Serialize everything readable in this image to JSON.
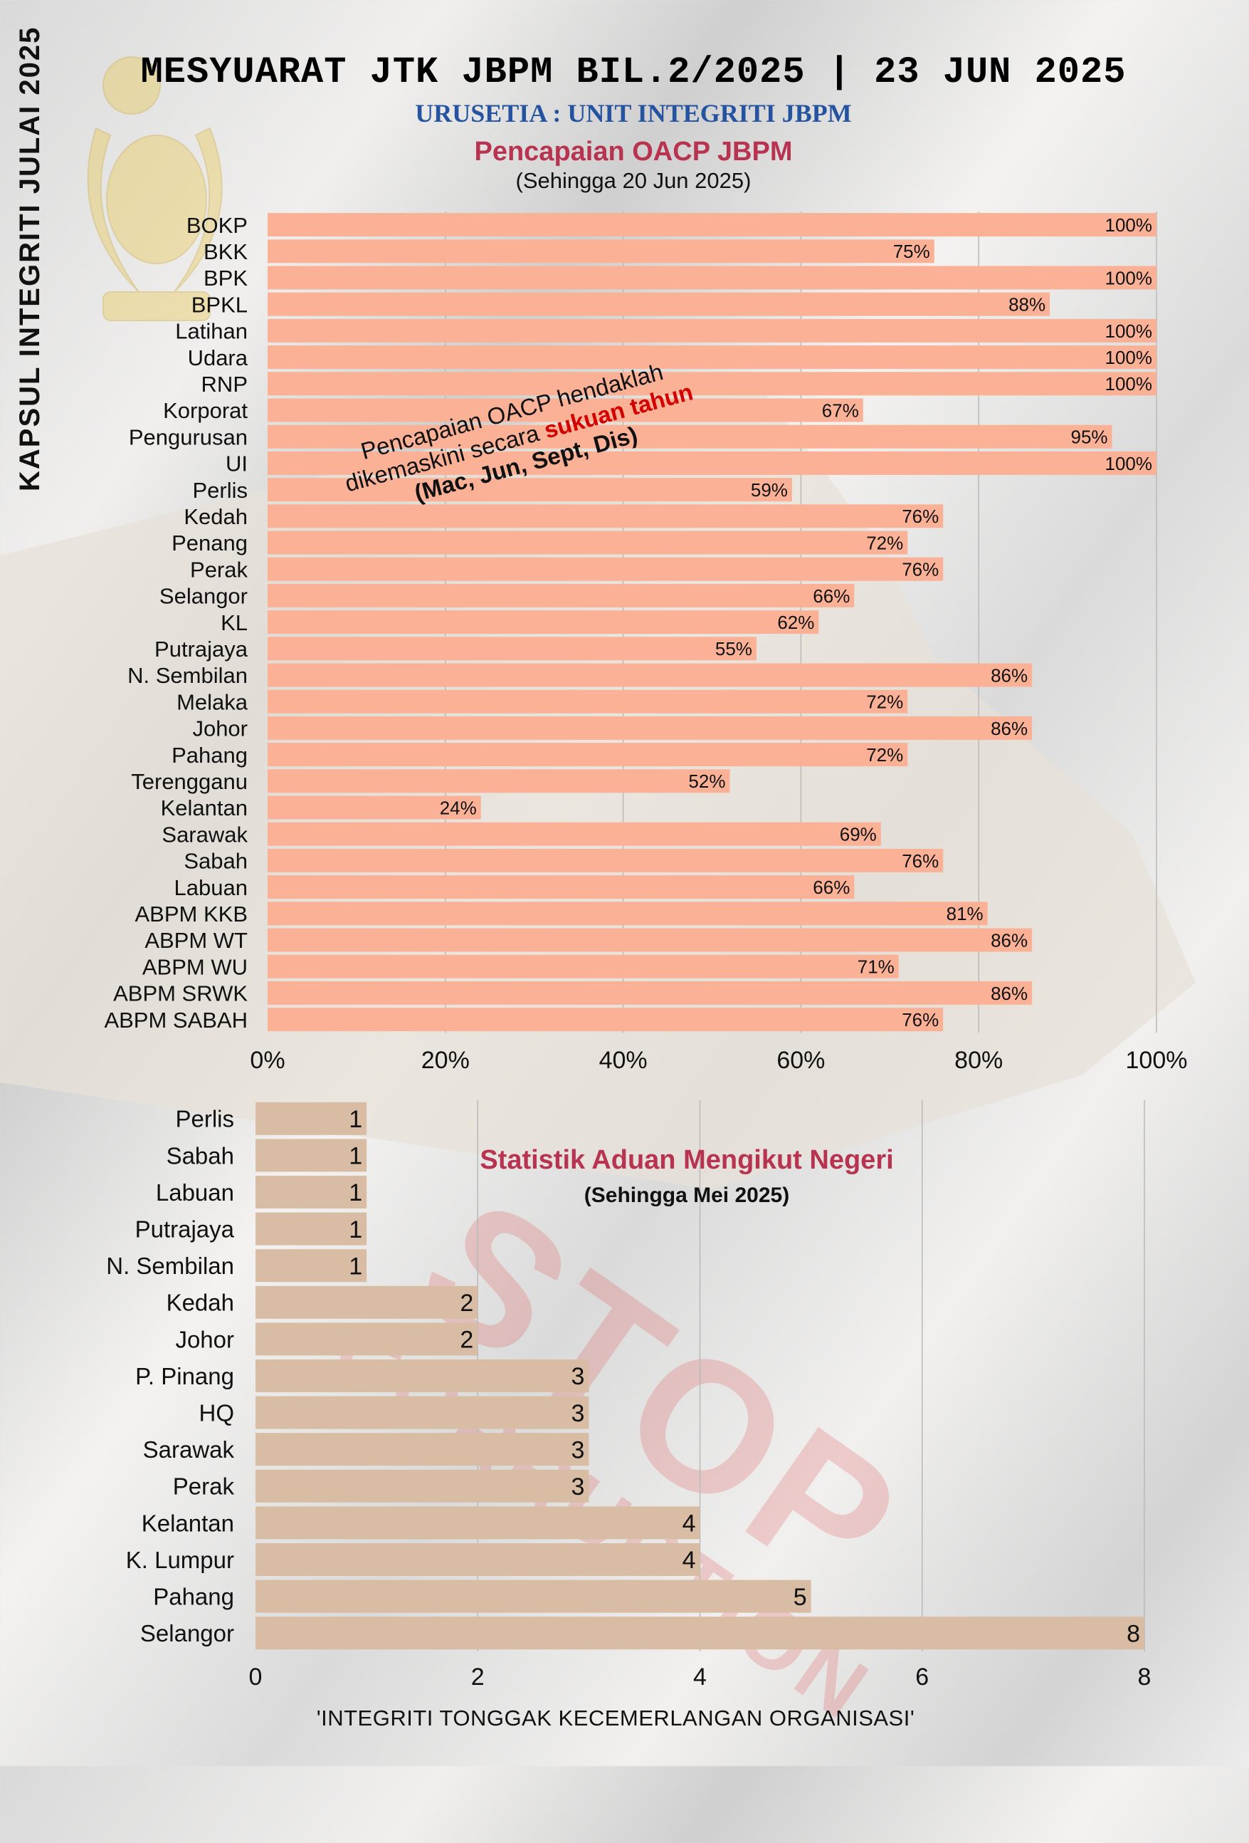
{
  "side_title": "KAPSUL INTEGRITI JULAI 2025",
  "header": {
    "title": "MESYUARAT JTK JBPM BIL.2/2025 | 23 JUN 2025",
    "subtitle": "URUSETIA : UNIT INTEGRITI JBPM"
  },
  "note": {
    "line1": "Pencapaian OACP  hendaklah",
    "line2_pre": "dikemaskini secara ",
    "line2_highlight": "sukuan tahun",
    "line3": "(Mac, Jun, Sept, Dis)"
  },
  "watermark": {
    "line1": "STOP",
    "line2": "CORRUPTION"
  },
  "footer": "'INTEGRITI TONGGAK KECEMERLANGAN ORGANISASI'",
  "colors": {
    "bar1": "#fbb196",
    "bar2": "#d8bca3",
    "title_red": "#b8334f",
    "subtitle_blue": "#2553a0"
  },
  "chart_data": [
    {
      "type": "bar",
      "orientation": "horizontal",
      "title": "Pencapaian OACP JBPM",
      "subtitle": "(Sehingga 20 Jun 2025)",
      "categories": [
        "BOKP",
        "BKK",
        "BPK",
        "BPKL",
        "Latihan",
        "Udara",
        "RNP",
        "Korporat",
        "Pengurusan",
        "UI",
        "Perlis",
        "Kedah",
        "Penang",
        "Perak",
        "Selangor",
        "KL",
        "Putrajaya",
        "N. Sembilan",
        "Melaka",
        "Johor",
        "Pahang",
        "Terengganu",
        "Kelantan",
        "Sarawak",
        "Sabah",
        "Labuan",
        "ABPM KKB",
        "ABPM WT",
        "ABPM WU",
        "ABPM SRWK",
        "ABPM SABAH"
      ],
      "values": [
        100,
        75,
        100,
        88,
        100,
        100,
        100,
        67,
        95,
        100,
        59,
        76,
        72,
        76,
        66,
        62,
        55,
        86,
        72,
        86,
        72,
        52,
        24,
        69,
        76,
        66,
        81,
        86,
        71,
        86,
        76
      ],
      "xlim": [
        0,
        100
      ],
      "xticks": [
        "0%",
        "20%",
        "40%",
        "60%",
        "80%",
        "100%"
      ],
      "value_suffix": "%",
      "grid": true
    },
    {
      "type": "bar",
      "orientation": "horizontal",
      "title": "Statistik Aduan Mengikut Negeri",
      "subtitle": "(Sehingga Mei 2025)",
      "categories": [
        "Perlis",
        "Sabah",
        "Labuan",
        "Putrajaya",
        "N. Sembilan",
        "Kedah",
        "Johor",
        "P. Pinang",
        "HQ",
        "Sarawak",
        "Perak",
        "Kelantan",
        "K. Lumpur",
        "Pahang",
        "Selangor"
      ],
      "values": [
        1,
        1,
        1,
        1,
        1,
        2,
        2,
        3,
        3,
        3,
        3,
        4,
        4,
        5,
        8
      ],
      "xlim": [
        0,
        8
      ],
      "xticks": [
        "0",
        "2",
        "4",
        "6",
        "8"
      ],
      "grid": true
    }
  ]
}
